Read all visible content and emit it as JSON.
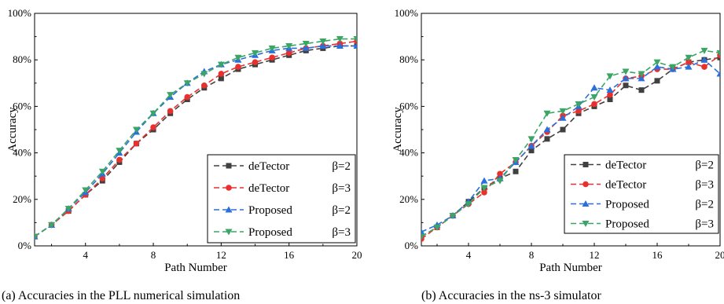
{
  "chart_data": [
    {
      "type": "line",
      "caption": "(a) Accuracies in the PLL numerical simulation",
      "xlabel": "Path Number",
      "ylabel": "Accuracy",
      "xlim": [
        1,
        20
      ],
      "ylim": [
        0,
        100
      ],
      "xticks": [
        "4",
        "8",
        "12",
        "16",
        "20"
      ],
      "yticks": [
        "0%",
        "20%",
        "40%",
        "60%",
        "80%",
        "100%"
      ],
      "legend_position": "bottom-right",
      "x": [
        1,
        2,
        3,
        4,
        5,
        6,
        7,
        8,
        9,
        10,
        11,
        12,
        13,
        14,
        15,
        16,
        17,
        18,
        19,
        20
      ],
      "series": [
        {
          "name": "deTector",
          "beta": "β=2",
          "color": "#404040",
          "marker": "square",
          "values": [
            4,
            9,
            15,
            22,
            28,
            36,
            44,
            50,
            57,
            63,
            68,
            72,
            76,
            78,
            80,
            82,
            84,
            85,
            86,
            86
          ]
        },
        {
          "name": "deTector",
          "beta": "β=3",
          "color": "#e8312f",
          "marker": "circle",
          "values": [
            4,
            9,
            15,
            22,
            29,
            37,
            44,
            51,
            58,
            64,
            69,
            74,
            77,
            79,
            81,
            83,
            85,
            86,
            87,
            88
          ]
        },
        {
          "name": "Proposed",
          "beta": "β=2",
          "color": "#2a6fdb",
          "marker": "triangle-up",
          "values": [
            4,
            9,
            16,
            23,
            31,
            40,
            49,
            57,
            64,
            70,
            75,
            78,
            80,
            82,
            84,
            85,
            85,
            86,
            86,
            86
          ]
        },
        {
          "name": "Proposed",
          "beta": "β=3",
          "color": "#3aa564",
          "marker": "triangle-down",
          "values": [
            4,
            9,
            16,
            24,
            32,
            41,
            50,
            57,
            65,
            70,
            74,
            78,
            81,
            83,
            85,
            86,
            87,
            88,
            89,
            89
          ]
        }
      ]
    },
    {
      "type": "line",
      "caption": "(b) Accuracies in the ns-3 simulator",
      "xlabel": "Path Number",
      "ylabel": "Accuracy",
      "xlim": [
        1,
        20
      ],
      "ylim": [
        0,
        100
      ],
      "xticks": [
        "4",
        "8",
        "12",
        "16",
        "20"
      ],
      "yticks": [
        "0%",
        "20%",
        "40%",
        "60%",
        "80%",
        "100%"
      ],
      "legend_position": "bottom-right",
      "x": [
        1,
        2,
        3,
        4,
        5,
        6,
        7,
        8,
        9,
        10,
        11,
        12,
        13,
        14,
        15,
        16,
        17,
        18,
        19,
        20
      ],
      "series": [
        {
          "name": "deTector",
          "beta": "β=2",
          "color": "#404040",
          "marker": "square",
          "values": [
            4,
            8,
            13,
            19,
            25,
            29,
            32,
            41,
            46,
            50,
            57,
            60,
            63,
            69,
            67,
            71,
            76,
            79,
            80,
            81
          ]
        },
        {
          "name": "deTector",
          "beta": "β=3",
          "color": "#e8312f",
          "marker": "circle",
          "values": [
            3,
            8,
            13,
            18,
            23,
            31,
            36,
            43,
            49,
            56,
            58,
            61,
            65,
            72,
            73,
            76,
            76,
            79,
            77,
            82
          ]
        },
        {
          "name": "Proposed",
          "beta": "β=2",
          "color": "#2a6fdb",
          "marker": "triangle-up",
          "values": [
            6,
            9,
            13,
            19,
            28,
            29,
            36,
            43,
            50,
            55,
            60,
            68,
            67,
            72,
            72,
            77,
            76,
            77,
            80,
            74
          ]
        },
        {
          "name": "Proposed",
          "beta": "β=3",
          "color": "#3aa564",
          "marker": "triangle-down",
          "values": [
            4,
            8,
            13,
            18,
            25,
            28,
            37,
            46,
            57,
            58,
            61,
            64,
            73,
            75,
            74,
            79,
            77,
            81,
            84,
            83
          ]
        }
      ]
    }
  ]
}
